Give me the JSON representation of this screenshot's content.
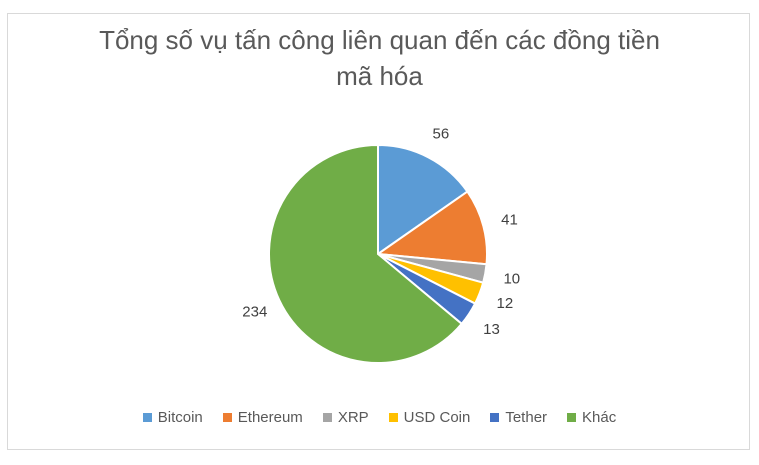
{
  "chart_data": {
    "type": "pie",
    "title_lines": [
      "Tổng số vụ tấn công liên quan đến các đồng tiền",
      "mã hóa"
    ],
    "categories": [
      "Bitcoin",
      "Ethereum",
      "XRP",
      "USD Coin",
      "Tether",
      "Khác"
    ],
    "values": [
      56,
      41,
      10,
      12,
      13,
      234
    ],
    "data_labels": [
      "56",
      "41",
      "10",
      "12",
      "13",
      "234"
    ],
    "colors": [
      "#5b9bd5",
      "#ed7d31",
      "#a5a5a5",
      "#ffc000",
      "#4472c4",
      "#70ad47"
    ],
    "legend_position": "bottom",
    "start_angle_deg": 0,
    "direction": "clockwise"
  }
}
